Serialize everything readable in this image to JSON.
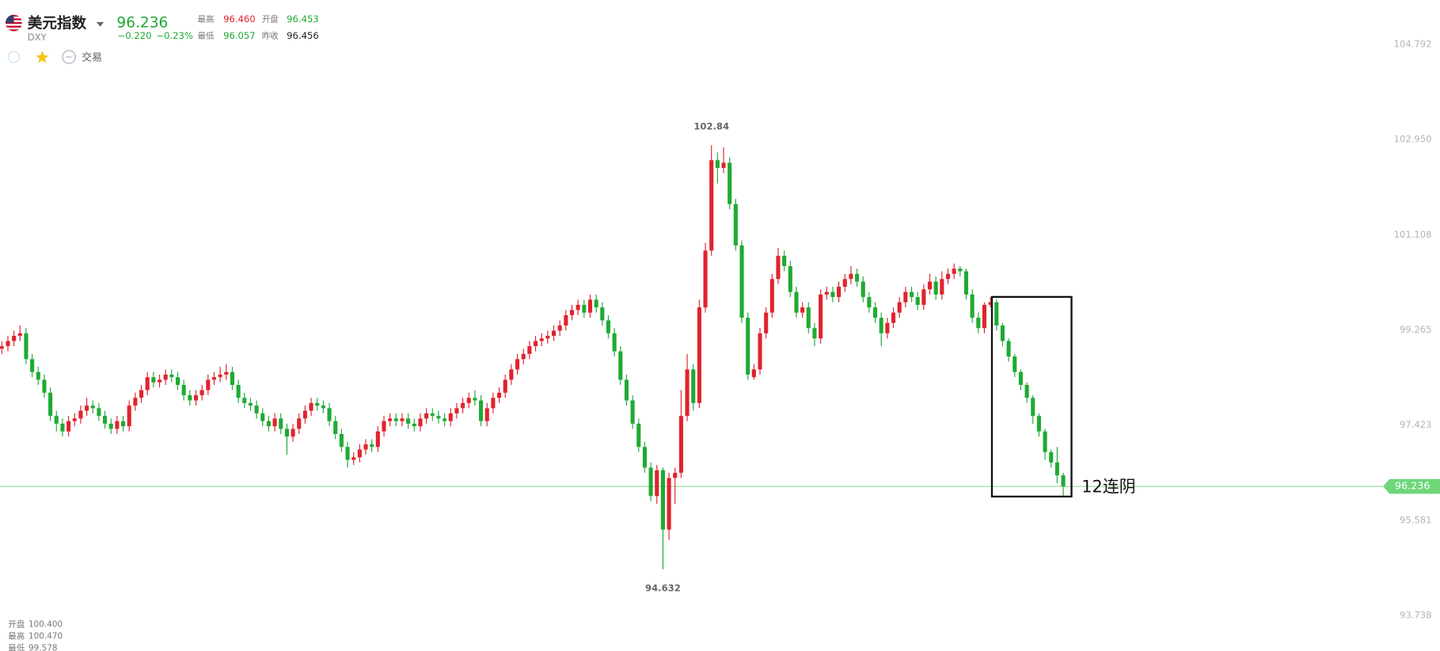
{
  "header": {
    "name": "美元指数",
    "code": "DXY",
    "last": "96.236",
    "change": "−0.220",
    "change_pct": "−0.23%",
    "stats": [
      {
        "label": "最高",
        "value": "96.460"
      },
      {
        "label": "开盘",
        "value": "96.453"
      },
      {
        "label": "最低",
        "value": "96.057"
      },
      {
        "label": "昨收",
        "value": "96.456"
      }
    ]
  },
  "toolbar": {
    "trade": "交易"
  },
  "info": [
    {
      "label": "开盘",
      "value": "100.400"
    },
    {
      "label": "最高",
      "value": "100.470"
    },
    {
      "label": "最低",
      "value": "99.578"
    }
  ],
  "chart_data": {
    "type": "candlestick",
    "up_color": "#e0232e",
    "down_color": "#1faa34",
    "price_line_color": "#8fdc96",
    "annotation": "12连阴",
    "ylim": [
      93.05,
      105.65
    ],
    "yticks": [
      104.792,
      {
        "value": 102.95,
        "label": "102.950"
      },
      101.108,
      99.265,
      97.423,
      95.581,
      93.738
    ],
    "open": [
      98.9,
      98.95,
      99.05,
      99.15,
      99.2,
      98.7,
      98.45,
      98.3,
      98.05,
      97.6,
      97.45,
      97.3,
      97.5,
      97.55,
      97.7,
      97.8,
      97.75,
      97.6,
      97.45,
      97.35,
      97.5,
      97.4,
      97.8,
      97.95,
      98.1,
      98.35,
      98.25,
      98.3,
      98.4,
      98.35,
      98.2,
      98.0,
      97.9,
      98.0,
      98.1,
      98.3,
      98.35,
      98.4,
      98.45,
      98.2,
      97.95,
      97.85,
      97.8,
      97.65,
      97.5,
      97.4,
      97.55,
      97.35,
      97.2,
      97.35,
      97.55,
      97.7,
      97.85,
      97.8,
      97.75,
      97.5,
      97.25,
      97.0,
      96.75,
      96.8,
      96.95,
      97.05,
      97.0,
      97.3,
      97.5,
      97.55,
      97.5,
      97.55,
      97.45,
      97.4,
      97.55,
      97.65,
      97.6,
      97.55,
      97.5,
      97.65,
      97.75,
      97.85,
      97.95,
      97.9,
      97.5,
      97.75,
      97.95,
      98.05,
      98.3,
      98.5,
      98.7,
      98.8,
      98.95,
      99.05,
      99.1,
      99.15,
      99.25,
      99.35,
      99.55,
      99.65,
      99.75,
      99.6,
      99.85,
      99.7,
      99.45,
      99.2,
      98.85,
      98.3,
      97.9,
      97.45,
      97.0,
      96.6,
      96.05,
      96.55,
      95.4,
      96.4,
      96.5,
      97.6,
      98.5,
      97.85,
      99.7,
      100.8,
      102.55,
      102.4,
      102.5,
      101.7,
      100.9,
      99.5,
      98.35,
      98.5,
      99.2,
      99.6,
      100.25,
      100.7,
      100.5,
      100.0,
      99.6,
      99.7,
      99.3,
      99.1,
      99.95,
      100.0,
      99.9,
      100.1,
      100.25,
      100.35,
      100.2,
      99.9,
      99.7,
      99.5,
      99.2,
      99.4,
      99.6,
      99.8,
      100.0,
      99.9,
      99.75,
      100.05,
      100.2,
      99.95,
      100.25,
      100.35,
      100.45,
      100.4,
      99.95,
      99.5,
      99.3,
      99.75,
      99.8,
      99.35,
      99.05,
      98.75,
      98.45,
      98.2,
      97.95,
      97.6,
      97.3,
      96.9,
      96.7,
      96.45
    ],
    "high": [
      99.05,
      99.15,
      99.25,
      99.35,
      99.3,
      98.8,
      98.55,
      98.4,
      98.15,
      97.7,
      97.55,
      97.6,
      97.65,
      97.8,
      97.95,
      97.9,
      97.85,
      97.7,
      97.55,
      97.6,
      97.6,
      97.9,
      98.05,
      98.2,
      98.45,
      98.45,
      98.4,
      98.5,
      98.5,
      98.45,
      98.3,
      98.1,
      98.1,
      98.2,
      98.4,
      98.45,
      98.55,
      98.6,
      98.55,
      98.3,
      98.05,
      97.95,
      97.9,
      97.75,
      97.6,
      97.65,
      97.65,
      97.45,
      97.45,
      97.65,
      97.8,
      97.95,
      97.95,
      97.9,
      97.85,
      97.6,
      97.35,
      97.1,
      96.9,
      97.05,
      97.15,
      97.15,
      97.4,
      97.6,
      97.65,
      97.65,
      97.65,
      97.65,
      97.55,
      97.65,
      97.75,
      97.75,
      97.7,
      97.65,
      97.75,
      97.85,
      97.95,
      98.05,
      98.1,
      98.0,
      97.85,
      98.05,
      98.15,
      98.4,
      98.6,
      98.8,
      98.9,
      99.05,
      99.15,
      99.2,
      99.25,
      99.35,
      99.45,
      99.65,
      99.75,
      99.85,
      99.85,
      99.95,
      99.95,
      99.8,
      99.55,
      99.3,
      98.95,
      98.4,
      98.0,
      97.55,
      97.1,
      96.7,
      96.65,
      96.6,
      96.5,
      96.6,
      98.1,
      98.8,
      98.6,
      99.85,
      100.95,
      102.84,
      102.7,
      102.8,
      102.6,
      101.8,
      101.0,
      99.6,
      98.6,
      99.3,
      99.7,
      100.35,
      100.85,
      100.8,
      100.6,
      100.1,
      99.8,
      99.8,
      99.4,
      100.05,
      100.1,
      100.1,
      100.2,
      100.35,
      100.5,
      100.45,
      100.3,
      100.0,
      99.8,
      99.6,
      99.5,
      99.7,
      99.9,
      100.1,
      100.1,
      100.0,
      100.15,
      100.35,
      100.3,
      100.4,
      100.45,
      100.55,
      100.5,
      100.45,
      100.05,
      99.6,
      99.8,
      99.9,
      99.85,
      99.4,
      99.1,
      98.8,
      98.5,
      98.25,
      98.0,
      97.65,
      97.35,
      96.95,
      97.0,
      96.5
    ],
    "low": [
      98.8,
      98.85,
      98.95,
      99.05,
      98.6,
      98.35,
      98.2,
      97.95,
      97.5,
      97.3,
      97.2,
      97.2,
      97.4,
      97.45,
      97.6,
      97.65,
      97.5,
      97.35,
      97.25,
      97.25,
      97.3,
      97.3,
      97.7,
      97.85,
      98.0,
      98.15,
      98.15,
      98.2,
      98.25,
      98.1,
      97.9,
      97.8,
      97.8,
      97.9,
      98.0,
      98.2,
      98.25,
      98.3,
      98.1,
      97.85,
      97.75,
      97.7,
      97.55,
      97.4,
      97.3,
      97.3,
      97.25,
      96.85,
      97.1,
      97.25,
      97.45,
      97.6,
      97.7,
      97.65,
      97.4,
      97.15,
      96.9,
      96.6,
      96.65,
      96.7,
      96.85,
      96.9,
      96.9,
      97.2,
      97.4,
      97.4,
      97.4,
      97.35,
      97.3,
      97.3,
      97.45,
      97.5,
      97.45,
      97.4,
      97.4,
      97.55,
      97.65,
      97.75,
      97.8,
      97.4,
      97.4,
      97.65,
      97.85,
      97.95,
      98.2,
      98.4,
      98.6,
      98.7,
      98.85,
      98.95,
      99.0,
      99.05,
      99.15,
      99.25,
      99.45,
      99.55,
      99.5,
      99.5,
      99.6,
      99.35,
      99.1,
      98.75,
      98.2,
      97.8,
      97.35,
      96.9,
      96.5,
      95.95,
      95.9,
      94.632,
      95.2,
      95.9,
      96.4,
      97.5,
      97.7,
      97.75,
      99.6,
      100.7,
      102.1,
      102.3,
      101.6,
      100.8,
      99.4,
      98.3,
      98.3,
      98.4,
      99.1,
      99.5,
      100.15,
      100.4,
      99.9,
      99.5,
      99.5,
      99.2,
      98.95,
      99.0,
      99.85,
      99.8,
      99.8,
      100.0,
      100.15,
      100.1,
      99.8,
      99.6,
      99.4,
      98.95,
      99.1,
      99.3,
      99.5,
      99.7,
      99.8,
      99.65,
      99.65,
      99.95,
      99.85,
      99.85,
      100.15,
      100.25,
      100.3,
      99.85,
      99.4,
      99.2,
      99.2,
      99.7,
      99.25,
      98.95,
      98.65,
      98.35,
      98.1,
      97.85,
      97.45,
      97.2,
      96.75,
      96.6,
      96.3,
      96.057
    ],
    "close": [
      98.95,
      99.05,
      99.15,
      99.2,
      98.7,
      98.45,
      98.3,
      98.05,
      97.6,
      97.45,
      97.3,
      97.5,
      97.55,
      97.7,
      97.8,
      97.75,
      97.6,
      97.45,
      97.35,
      97.5,
      97.4,
      97.8,
      97.95,
      98.1,
      98.35,
      98.25,
      98.3,
      98.4,
      98.35,
      98.2,
      98.0,
      97.9,
      98.0,
      98.1,
      98.3,
      98.35,
      98.4,
      98.45,
      98.2,
      97.95,
      97.85,
      97.8,
      97.65,
      97.5,
      97.4,
      97.55,
      97.35,
      97.2,
      97.35,
      97.55,
      97.7,
      97.85,
      97.8,
      97.75,
      97.5,
      97.25,
      97.0,
      96.75,
      96.8,
      96.95,
      97.05,
      97.0,
      97.3,
      97.5,
      97.55,
      97.5,
      97.55,
      97.45,
      97.4,
      97.55,
      97.65,
      97.6,
      97.55,
      97.5,
      97.65,
      97.75,
      97.85,
      97.95,
      97.9,
      97.5,
      97.75,
      97.95,
      98.05,
      98.3,
      98.5,
      98.7,
      98.8,
      98.95,
      99.05,
      99.1,
      99.15,
      99.25,
      99.35,
      99.55,
      99.65,
      99.75,
      99.6,
      99.85,
      99.7,
      99.45,
      99.2,
      98.85,
      98.3,
      97.9,
      97.45,
      97.0,
      96.6,
      96.05,
      96.55,
      95.4,
      96.4,
      96.5,
      97.6,
      98.5,
      97.85,
      99.7,
      100.8,
      102.55,
      102.4,
      102.5,
      101.7,
      100.9,
      99.5,
      98.4,
      98.5,
      99.2,
      99.6,
      100.25,
      100.7,
      100.5,
      100.0,
      99.6,
      99.7,
      99.3,
      99.1,
      99.95,
      100.0,
      99.9,
      100.1,
      100.25,
      100.35,
      100.2,
      99.9,
      99.7,
      99.5,
      99.2,
      99.4,
      99.6,
      99.8,
      100.0,
      99.9,
      99.75,
      100.05,
      100.2,
      99.95,
      100.25,
      100.35,
      100.45,
      100.4,
      99.95,
      99.5,
      99.3,
      99.75,
      99.8,
      99.35,
      99.05,
      98.75,
      98.45,
      98.2,
      97.95,
      97.6,
      97.3,
      96.9,
      96.7,
      96.45,
      96.236
    ]
  }
}
